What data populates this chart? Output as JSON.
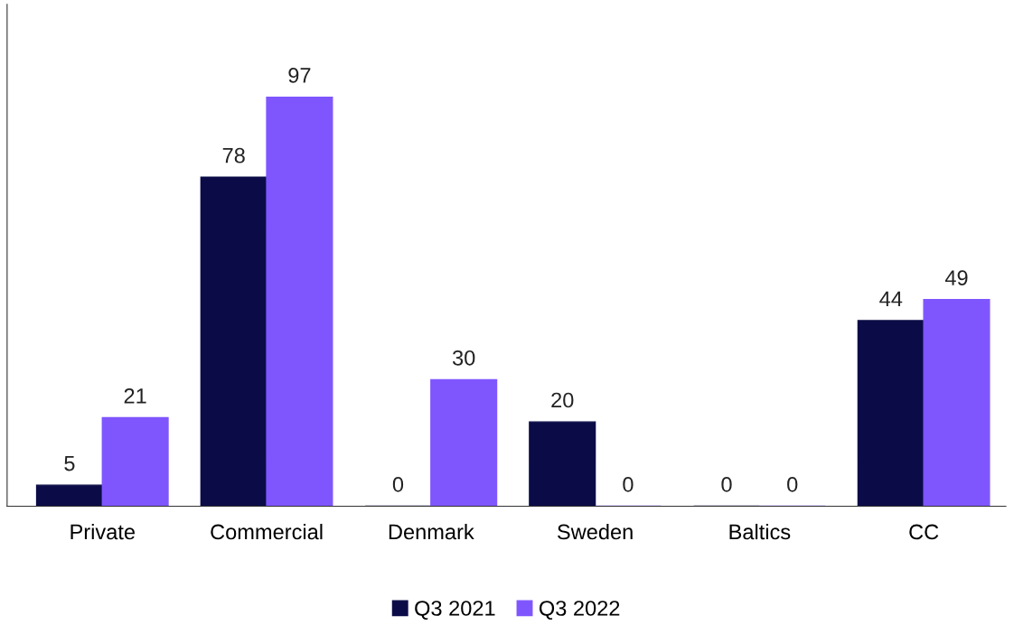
{
  "chart_data": {
    "type": "bar",
    "categories": [
      "Private",
      "Commercial",
      "Denmark",
      "Sweden",
      "Baltics",
      "CC"
    ],
    "series": [
      {
        "name": "Q3 2021",
        "color": "#0b0c47",
        "values": [
          5,
          78,
          0,
          20,
          0,
          44
        ]
      },
      {
        "name": "Q3 2022",
        "color": "#7f56fe",
        "values": [
          21,
          97,
          30,
          0,
          0,
          49
        ]
      }
    ],
    "ylim": [
      0,
      119
    ],
    "data_labels": true,
    "legend": "bottom",
    "grid": false,
    "tick_labels": "x"
  }
}
